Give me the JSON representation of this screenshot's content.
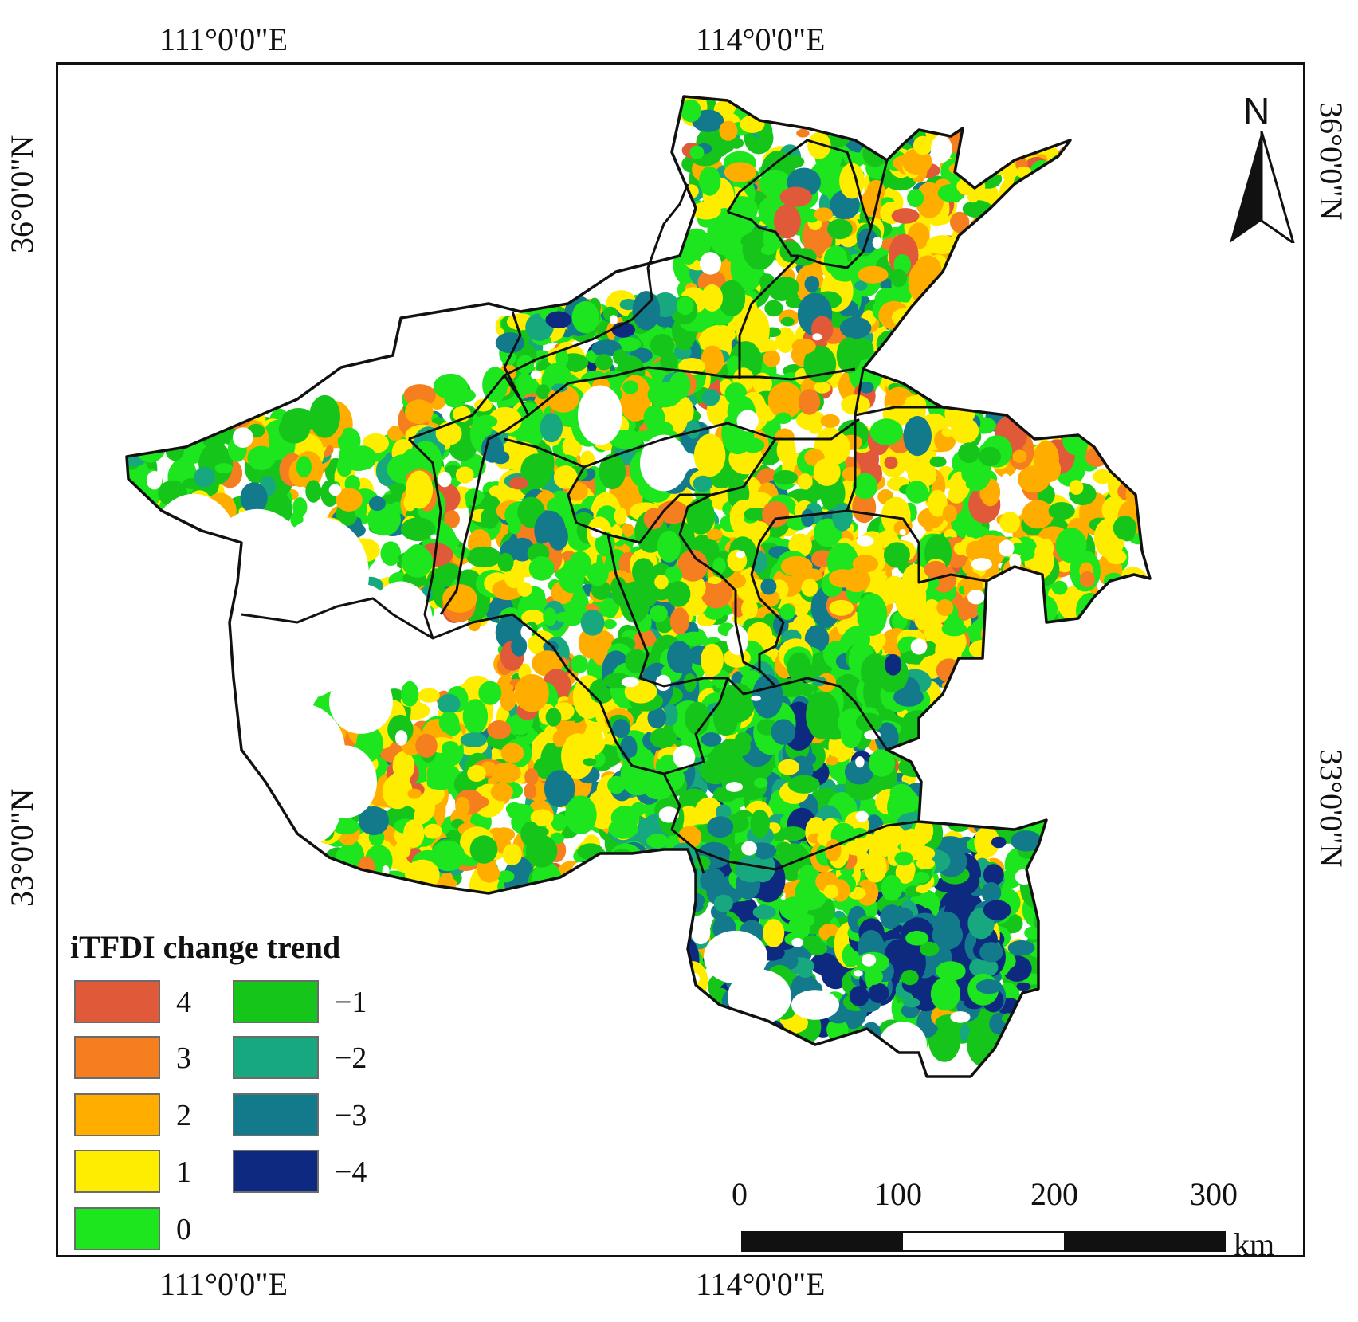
{
  "coordinates": {
    "top": [
      "111°0'0\"E",
      "114°0'0\"E"
    ],
    "bottom": [
      "111°0'0\"E",
      "114°0'0\"E"
    ],
    "left": [
      "36°0'0\"N",
      "33°0'0\"N"
    ],
    "right": [
      "36°0'0\"N",
      "33°0'0\"N"
    ]
  },
  "legend": {
    "title": "iTFDI change trend",
    "items": [
      {
        "label": "4",
        "color": "#e05a3a"
      },
      {
        "label": "3",
        "color": "#f57f1f"
      },
      {
        "label": "2",
        "color": "#ffae00"
      },
      {
        "label": "1",
        "color": "#ffed00"
      },
      {
        "label": "0",
        "color": "#1ee61e"
      },
      {
        "label": "−1",
        "color": "#16c51a"
      },
      {
        "label": "−2",
        "color": "#18a880"
      },
      {
        "label": "−3",
        "color": "#137a8c"
      },
      {
        "label": "−4",
        "color": "#0d2a80"
      }
    ]
  },
  "scale": {
    "labels": [
      "0",
      "100",
      "200",
      "300"
    ],
    "unit": "km"
  },
  "north": {
    "label": "N"
  }
}
